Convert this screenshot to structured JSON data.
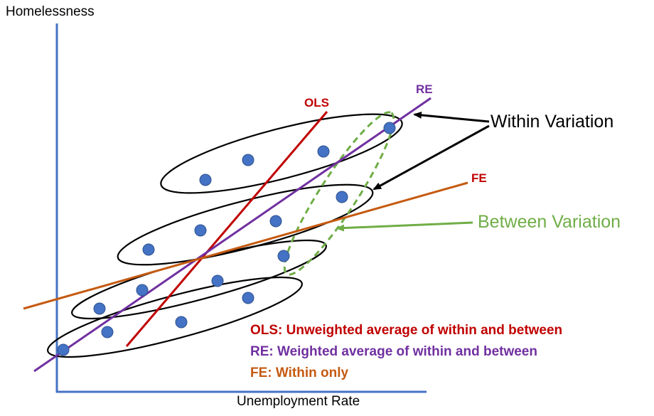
{
  "axes": {
    "y_label": "Homelessness",
    "x_label": "Unemployment Rate"
  },
  "lines": {
    "ols": {
      "label": "OLS",
      "color": "#C00000"
    },
    "re": {
      "label": "RE",
      "color": "#7030A0"
    },
    "fe": {
      "label": "FE",
      "color": "#C55A11"
    }
  },
  "annotations": {
    "within": {
      "label": "Within Variation",
      "color": "#000000"
    },
    "between": {
      "label": "Between Variation",
      "color": "#70AD47"
    }
  },
  "legend": [
    {
      "text": "OLS:  Unweighted average of within and between",
      "color": "#C00000"
    },
    {
      "text": "RE:  Weighted average of within and between",
      "color": "#7030A0"
    },
    {
      "text": "FE:  Within only",
      "color": "#C55A11"
    }
  ],
  "colors": {
    "axis": "#4472C4",
    "point": "#4472C4",
    "group_outline": "#000000"
  }
}
